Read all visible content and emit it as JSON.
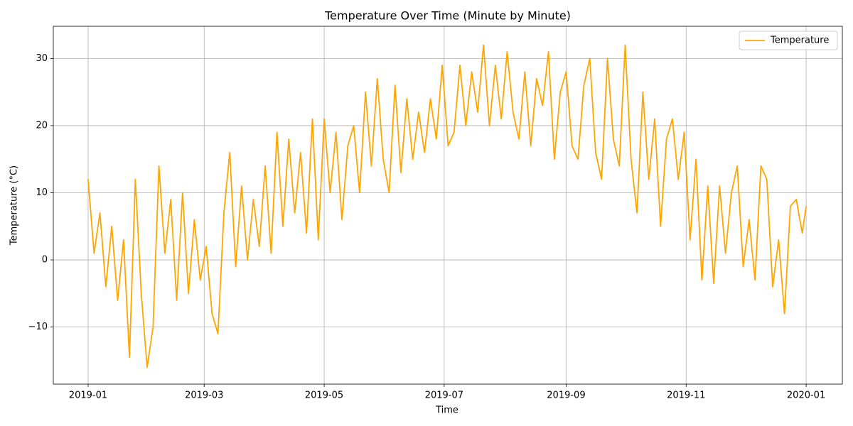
{
  "chart_data": {
    "type": "line",
    "title": "Temperature Over Time (Minute by Minute)",
    "xlabel": "Time",
    "ylabel": "Temperature (°C)",
    "x": [
      0,
      3,
      6,
      9,
      12,
      15,
      18,
      21,
      24,
      27,
      30,
      33,
      36,
      39,
      42,
      45,
      48,
      51,
      54,
      57,
      60,
      63,
      66,
      69,
      72,
      75,
      78,
      81,
      84,
      87,
      90,
      93,
      96,
      99,
      102,
      105,
      108,
      111,
      114,
      117,
      120,
      123,
      126,
      129,
      132,
      135,
      138,
      141,
      144,
      147,
      150,
      153,
      156,
      159,
      162,
      165,
      168,
      171,
      174,
      177,
      180,
      183,
      186,
      189,
      192,
      195,
      198,
      201,
      204,
      207,
      210,
      213,
      216,
      219,
      222,
      225,
      228,
      231,
      234,
      237,
      240,
      243,
      246,
      249,
      252,
      255,
      258,
      261,
      264,
      267,
      270,
      273,
      276,
      279,
      282,
      285,
      288,
      291,
      294,
      297,
      300,
      303,
      306,
      309,
      312,
      315,
      318,
      321,
      324,
      327,
      330,
      333,
      336,
      339,
      342,
      345,
      348,
      351,
      354,
      357,
      360,
      363,
      365
    ],
    "series": [
      {
        "name": "Temperature",
        "color": "#ffa500",
        "values": [
          12,
          1,
          7,
          -4,
          5,
          -6,
          3,
          -14.5,
          12,
          -5,
          -16,
          -10,
          14,
          1,
          9,
          -6,
          10,
          -5,
          6,
          -3,
          2,
          -8,
          -11,
          7,
          16,
          -1,
          11,
          0,
          9,
          2,
          14,
          1,
          19,
          5,
          18,
          7,
          16,
          4,
          21,
          3,
          21,
          10,
          19,
          6,
          17,
          20,
          10,
          25,
          14,
          27,
          15,
          10,
          26,
          13,
          24,
          15,
          22,
          16,
          24,
          18,
          29,
          17,
          19,
          29,
          20,
          28,
          22,
          32,
          20,
          29,
          21,
          31,
          22,
          18,
          28,
          17,
          27,
          23,
          31,
          15,
          25,
          28,
          17,
          15,
          26,
          30,
          16,
          12,
          30,
          18,
          14,
          32,
          15,
          7,
          25,
          12,
          21,
          5,
          18,
          21,
          12,
          19,
          3,
          15,
          -3,
          11,
          -3.5,
          11,
          1,
          10,
          14,
          -1,
          6,
          -3,
          14,
          12,
          -4,
          3,
          -8,
          8,
          9,
          4,
          8
        ]
      }
    ],
    "xlim": [
      -17.7,
      383.4
    ],
    "ylim": [
      -18.5,
      34.8
    ],
    "xticks": [
      {
        "value": 0,
        "label": "2019-01"
      },
      {
        "value": 59,
        "label": "2019-03"
      },
      {
        "value": 120,
        "label": "2019-05"
      },
      {
        "value": 181,
        "label": "2019-07"
      },
      {
        "value": 243,
        "label": "2019-09"
      },
      {
        "value": 304,
        "label": "2019-11"
      },
      {
        "value": 365,
        "label": "2020-01"
      }
    ],
    "yticks": [
      {
        "value": -10,
        "label": "−10"
      },
      0,
      10,
      20,
      30
    ],
    "grid": true,
    "legend": "upper right"
  }
}
